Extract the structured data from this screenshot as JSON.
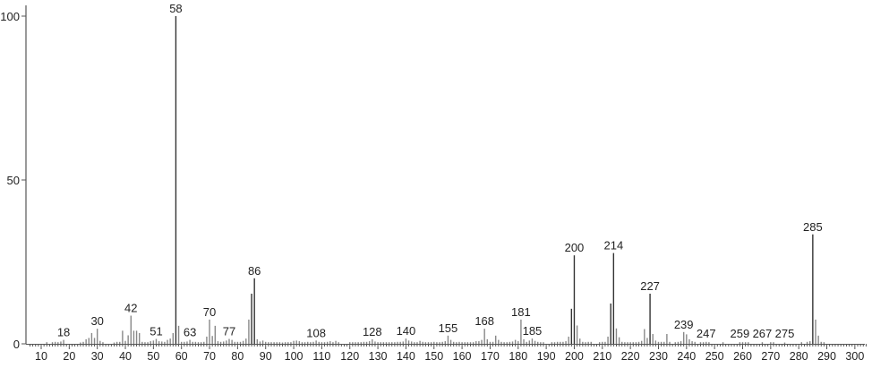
{
  "chart_data": {
    "type": "bar",
    "title": "",
    "xlabel": "",
    "ylabel": "",
    "xlim": [
      5,
      305
    ],
    "ylim": [
      0,
      100
    ],
    "x_ticks": [
      10,
      20,
      30,
      40,
      50,
      60,
      70,
      80,
      90,
      100,
      110,
      120,
      130,
      140,
      150,
      160,
      170,
      180,
      190,
      200,
      210,
      220,
      230,
      240,
      250,
      260,
      270,
      280,
      290,
      300
    ],
    "y_ticks": [
      0,
      50,
      100
    ],
    "grid": false,
    "colors": {
      "peak": "#888888",
      "major_peak": "#333333",
      "axis": "#555555"
    },
    "peaks": [
      [
        12,
        0.5
      ],
      [
        14,
        0.5
      ],
      [
        15,
        0.6
      ],
      [
        16,
        0.5
      ],
      [
        17,
        0.7
      ],
      [
        18,
        1.2
      ],
      [
        24,
        0.4
      ],
      [
        25,
        0.6
      ],
      [
        26,
        1.4
      ],
      [
        27,
        1.8
      ],
      [
        28,
        3.3
      ],
      [
        29,
        1.8
      ],
      [
        30,
        4.6
      ],
      [
        31,
        0.9
      ],
      [
        32,
        0.5
      ],
      [
        36,
        0.4
      ],
      [
        37,
        0.6
      ],
      [
        38,
        0.6
      ],
      [
        39,
        4.0
      ],
      [
        40,
        0.9
      ],
      [
        41,
        2.6
      ],
      [
        42,
        8.6
      ],
      [
        43,
        4.0
      ],
      [
        44,
        4.0
      ],
      [
        45,
        3.3
      ],
      [
        46,
        0.6
      ],
      [
        47,
        0.5
      ],
      [
        48,
        0.5
      ],
      [
        49,
        0.8
      ],
      [
        50,
        1.0
      ],
      [
        51,
        1.5
      ],
      [
        52,
        0.8
      ],
      [
        53,
        0.7
      ],
      [
        54,
        0.6
      ],
      [
        55,
        1.2
      ],
      [
        56,
        1.6
      ],
      [
        57,
        3.3
      ],
      [
        58,
        100
      ],
      [
        59,
        5.5
      ],
      [
        60,
        0.6
      ],
      [
        61,
        0.6
      ],
      [
        62,
        0.7
      ],
      [
        63,
        1.2
      ],
      [
        64,
        0.6
      ],
      [
        65,
        0.6
      ],
      [
        66,
        0.5
      ],
      [
        67,
        0.5
      ],
      [
        68,
        0.6
      ],
      [
        69,
        2.2
      ],
      [
        70,
        7.4
      ],
      [
        71,
        2.4
      ],
      [
        72,
        5.5
      ],
      [
        73,
        0.8
      ],
      [
        74,
        0.6
      ],
      [
        75,
        0.7
      ],
      [
        76,
        1.0
      ],
      [
        77,
        1.5
      ],
      [
        78,
        1.2
      ],
      [
        79,
        0.6
      ],
      [
        80,
        0.6
      ],
      [
        81,
        0.6
      ],
      [
        82,
        0.9
      ],
      [
        83,
        1.6
      ],
      [
        84,
        7.4
      ],
      [
        85,
        15.3
      ],
      [
        86,
        20.0
      ],
      [
        87,
        1.4
      ],
      [
        88,
        0.7
      ],
      [
        89,
        1.0
      ],
      [
        90,
        0.6
      ],
      [
        91,
        0.5
      ],
      [
        92,
        0.5
      ],
      [
        93,
        0.5
      ],
      [
        94,
        0.5
      ],
      [
        95,
        0.5
      ],
      [
        96,
        0.4
      ],
      [
        97,
        0.5
      ],
      [
        98,
        0.5
      ],
      [
        99,
        0.5
      ],
      [
        100,
        0.9
      ],
      [
        101,
        1.0
      ],
      [
        102,
        0.8
      ],
      [
        103,
        0.5
      ],
      [
        104,
        0.5
      ],
      [
        105,
        0.6
      ],
      [
        106,
        0.5
      ],
      [
        107,
        0.6
      ],
      [
        108,
        1.0
      ],
      [
        109,
        0.6
      ],
      [
        110,
        0.5
      ],
      [
        111,
        0.5
      ],
      [
        112,
        0.6
      ],
      [
        113,
        0.8
      ],
      [
        114,
        0.5
      ],
      [
        115,
        0.9
      ],
      [
        116,
        0.5
      ],
      [
        120,
        0.5
      ],
      [
        121,
        0.5
      ],
      [
        122,
        0.5
      ],
      [
        123,
        0.5
      ],
      [
        124,
        0.5
      ],
      [
        125,
        0.6
      ],
      [
        126,
        0.6
      ],
      [
        127,
        0.8
      ],
      [
        128,
        1.4
      ],
      [
        129,
        0.7
      ],
      [
        130,
        0.5
      ],
      [
        131,
        0.5
      ],
      [
        132,
        0.5
      ],
      [
        133,
        0.5
      ],
      [
        134,
        0.5
      ],
      [
        135,
        0.5
      ],
      [
        136,
        0.5
      ],
      [
        137,
        0.6
      ],
      [
        138,
        0.6
      ],
      [
        139,
        0.7
      ],
      [
        140,
        1.6
      ],
      [
        141,
        1.0
      ],
      [
        142,
        0.7
      ],
      [
        143,
        0.5
      ],
      [
        144,
        0.5
      ],
      [
        145,
        0.9
      ],
      [
        146,
        0.6
      ],
      [
        147,
        0.5
      ],
      [
        148,
        0.5
      ],
      [
        149,
        0.5
      ],
      [
        150,
        0.6
      ],
      [
        151,
        0.5
      ],
      [
        152,
        0.5
      ],
      [
        153,
        0.6
      ],
      [
        154,
        0.8
      ],
      [
        155,
        2.5
      ],
      [
        156,
        1.2
      ],
      [
        157,
        0.6
      ],
      [
        158,
        0.5
      ],
      [
        159,
        0.6
      ],
      [
        160,
        0.5
      ],
      [
        161,
        0.5
      ],
      [
        162,
        0.5
      ],
      [
        163,
        0.5
      ],
      [
        164,
        0.5
      ],
      [
        165,
        0.8
      ],
      [
        166,
        0.8
      ],
      [
        167,
        1.2
      ],
      [
        168,
        4.6
      ],
      [
        169,
        1.4
      ],
      [
        170,
        0.6
      ],
      [
        171,
        0.6
      ],
      [
        172,
        2.5
      ],
      [
        173,
        1.2
      ],
      [
        174,
        0.6
      ],
      [
        175,
        0.5
      ],
      [
        176,
        0.5
      ],
      [
        177,
        0.6
      ],
      [
        178,
        0.7
      ],
      [
        179,
        1.2
      ],
      [
        180,
        0.8
      ],
      [
        181,
        7.4
      ],
      [
        182,
        1.4
      ],
      [
        183,
        0.6
      ],
      [
        184,
        1.0
      ],
      [
        185,
        1.6
      ],
      [
        186,
        0.9
      ],
      [
        187,
        0.6
      ],
      [
        188,
        0.5
      ],
      [
        189,
        0.5
      ],
      [
        192,
        0.5
      ],
      [
        193,
        0.5
      ],
      [
        194,
        0.6
      ],
      [
        195,
        0.6
      ],
      [
        196,
        0.6
      ],
      [
        197,
        0.8
      ],
      [
        198,
        2.2
      ],
      [
        199,
        10.7
      ],
      [
        200,
        27.0
      ],
      [
        201,
        5.6
      ],
      [
        202,
        1.6
      ],
      [
        203,
        0.6
      ],
      [
        204,
        0.5
      ],
      [
        205,
        0.6
      ],
      [
        206,
        0.6
      ],
      [
        209,
        0.5
      ],
      [
        210,
        0.6
      ],
      [
        211,
        0.6
      ],
      [
        212,
        2.2
      ],
      [
        213,
        12.3
      ],
      [
        214,
        27.7
      ],
      [
        215,
        4.7
      ],
      [
        216,
        2.0
      ],
      [
        217,
        0.6
      ],
      [
        218,
        0.5
      ],
      [
        219,
        0.5
      ],
      [
        220,
        0.5
      ],
      [
        221,
        0.5
      ],
      [
        222,
        0.5
      ],
      [
        223,
        0.6
      ],
      [
        224,
        0.9
      ],
      [
        225,
        4.5
      ],
      [
        226,
        1.8
      ],
      [
        227,
        15.3
      ],
      [
        228,
        3.0
      ],
      [
        229,
        1.0
      ],
      [
        230,
        0.6
      ],
      [
        231,
        0.6
      ],
      [
        232,
        0.6
      ],
      [
        233,
        3.0
      ],
      [
        234,
        0.6
      ],
      [
        236,
        0.5
      ],
      [
        237,
        0.6
      ],
      [
        238,
        0.8
      ],
      [
        239,
        3.6
      ],
      [
        240,
        2.9
      ],
      [
        241,
        1.4
      ],
      [
        242,
        0.8
      ],
      [
        243,
        0.6
      ],
      [
        245,
        0.5
      ],
      [
        246,
        0.5
      ],
      [
        247,
        0.6
      ],
      [
        248,
        0.5
      ],
      [
        253,
        0.5
      ],
      [
        259,
        0.5
      ],
      [
        260,
        0.5
      ],
      [
        261,
        0.5
      ],
      [
        262,
        0.5
      ],
      [
        267,
        0.5
      ],
      [
        270,
        0.5
      ],
      [
        271,
        0.5
      ],
      [
        275,
        0.4
      ],
      [
        281,
        0.5
      ],
      [
        283,
        0.6
      ],
      [
        284,
        0.8
      ],
      [
        285,
        33.4
      ],
      [
        286,
        7.4
      ],
      [
        287,
        2.5
      ],
      [
        288,
        0.6
      ],
      [
        289,
        0.5
      ]
    ],
    "peak_labels": [
      {
        "mz": 18,
        "text": "18"
      },
      {
        "mz": 30,
        "text": "30"
      },
      {
        "mz": 42,
        "text": "42"
      },
      {
        "mz": 51,
        "text": "51"
      },
      {
        "mz": 58,
        "text": "58"
      },
      {
        "mz": 63,
        "text": "63"
      },
      {
        "mz": 70,
        "text": "70"
      },
      {
        "mz": 77,
        "text": "77"
      },
      {
        "mz": 86,
        "text": "86"
      },
      {
        "mz": 108,
        "text": "108"
      },
      {
        "mz": 128,
        "text": "128"
      },
      {
        "mz": 140,
        "text": "140"
      },
      {
        "mz": 155,
        "text": "155"
      },
      {
        "mz": 168,
        "text": "168"
      },
      {
        "mz": 181,
        "text": "181"
      },
      {
        "mz": 185,
        "text": "185"
      },
      {
        "mz": 200,
        "text": "200"
      },
      {
        "mz": 214,
        "text": "214"
      },
      {
        "mz": 227,
        "text": "227"
      },
      {
        "mz": 239,
        "text": "239"
      },
      {
        "mz": 247,
        "text": "247"
      },
      {
        "mz": 259,
        "text": "259"
      },
      {
        "mz": 267,
        "text": "267"
      },
      {
        "mz": 275,
        "text": "275"
      },
      {
        "mz": 285,
        "text": "285"
      }
    ]
  }
}
